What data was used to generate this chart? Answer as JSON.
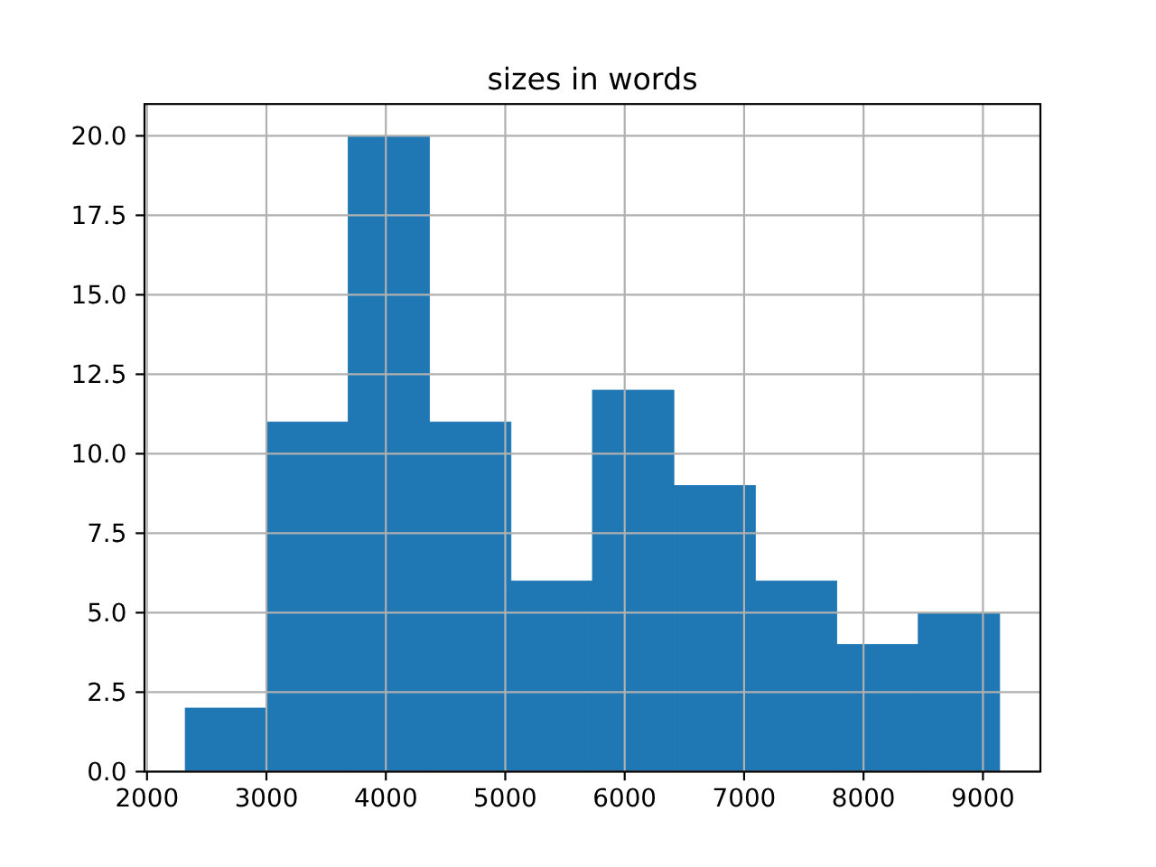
{
  "chart_data": {
    "type": "histogram",
    "title": "sizes in words",
    "bins": [
      2320,
      3002,
      3684,
      4366,
      5048,
      5730,
      6412,
      7094,
      7776,
      8458,
      9140
    ],
    "values": [
      2,
      11,
      20,
      11,
      6,
      12,
      9,
      6,
      4,
      5
    ],
    "color": "#1f77b4",
    "xlim": [
      1979,
      9481
    ],
    "ylim": [
      0,
      21
    ],
    "xticks": [
      2000,
      3000,
      4000,
      5000,
      6000,
      7000,
      8000,
      9000
    ],
    "yticks": [
      {
        "value": 0,
        "label": "0.0"
      },
      {
        "value": 2.5,
        "label": "2.5"
      },
      {
        "value": 5,
        "label": "5.0"
      },
      {
        "value": 7.5,
        "label": "7.5"
      },
      {
        "value": 10,
        "label": "10.0"
      },
      {
        "value": 12.5,
        "label": "12.5"
      },
      {
        "value": 15,
        "label": "15.0"
      },
      {
        "value": 17.5,
        "label": "17.5"
      },
      {
        "value": 20,
        "label": "20.0"
      }
    ],
    "grid": true
  }
}
